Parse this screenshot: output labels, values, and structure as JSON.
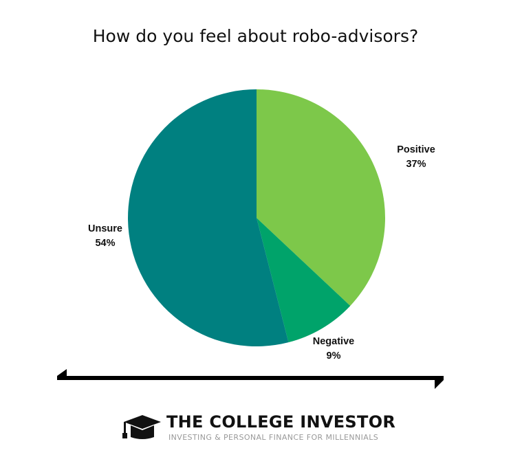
{
  "chart_data": {
    "type": "pie",
    "title": "How do you feel about robo-advisors?",
    "slices": [
      {
        "label": "Positive",
        "value": 37,
        "display": "37%",
        "color": "#7DC84A"
      },
      {
        "label": "Negative",
        "value": 9,
        "display": "9%",
        "color": "#00A36A"
      },
      {
        "label": "Unsure",
        "value": 54,
        "display": "54%",
        "color": "#008080"
      }
    ],
    "start_angle": "top",
    "direction": "clockwise"
  },
  "branding": {
    "name": "THE COLLEGE INVESTOR",
    "tagline": "INVESTING & PERSONAL FINANCE FOR MILLENNIALS",
    "icon": "graduation-cap-icon"
  }
}
